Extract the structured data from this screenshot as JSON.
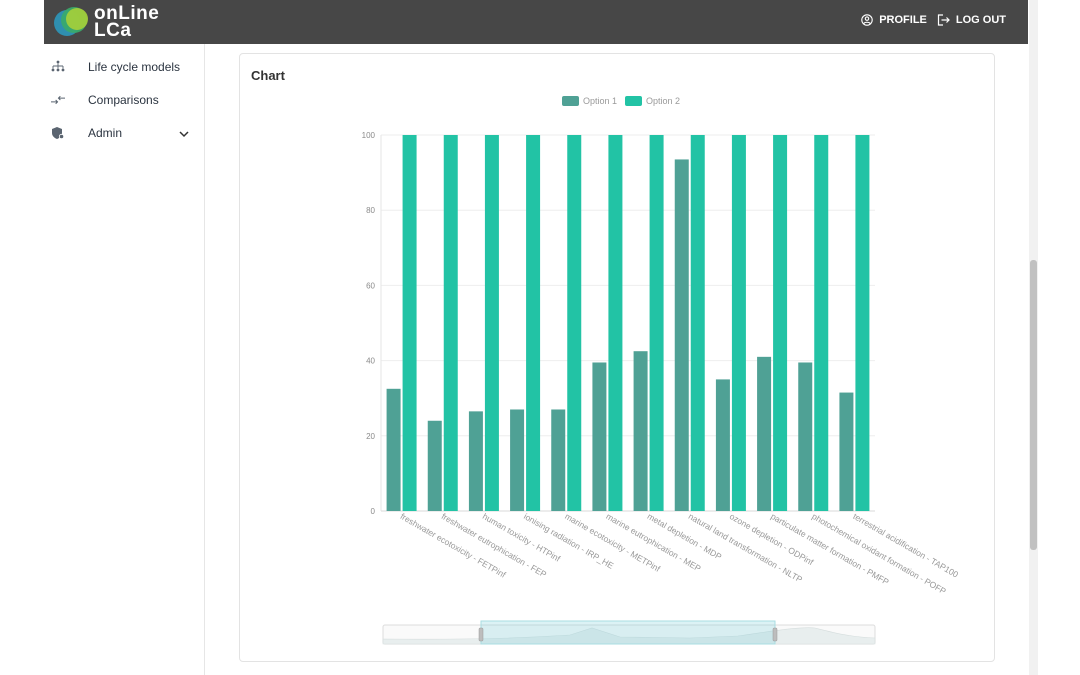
{
  "header": {
    "logo_line1": "onLine",
    "logo_line2": "LCa",
    "profile_label": "PROFILE",
    "logout_label": "LOG OUT"
  },
  "sidebar": {
    "items": [
      {
        "label": "Life cycle models",
        "icon": "hierarchy-icon"
      },
      {
        "label": "Comparisons",
        "icon": "compare-arrows-icon"
      },
      {
        "label": "Admin",
        "icon": "shield-admin-icon"
      }
    ]
  },
  "card": {
    "title": "Chart"
  },
  "colors": {
    "option1": "#4fa195",
    "option2": "#22c3a5",
    "topbar": "#474747"
  },
  "chart_data": {
    "type": "bar",
    "legend_position": "top",
    "ylim": [
      0,
      100
    ],
    "yticks": [
      0,
      20,
      40,
      60,
      80,
      100
    ],
    "categories": [
      "freshwater ecotoxicity - FETPinf",
      "freshwater eutrophication - FEP",
      "human toxicity - HTPinf",
      "ionising radiation - IRP_HE",
      "marine ecotoxicity - METPinf",
      "marine eutrophication - MEP",
      "metal depletion - MDP",
      "natural land transformation - NLTP",
      "ozone depletion - ODPinf",
      "particulate matter formation - PMFP",
      "photochemical oxidant formation - POFP",
      "terrestrial acidification - TAP100"
    ],
    "series": [
      {
        "name": "Option 1",
        "values": [
          32.5,
          24,
          26.5,
          27,
          27,
          39.5,
          42.5,
          93.5,
          35,
          41,
          39.5,
          31.5
        ]
      },
      {
        "name": "Option 2",
        "values": [
          100,
          100,
          100,
          100,
          100,
          100,
          100,
          100,
          100,
          100,
          100,
          100
        ]
      }
    ],
    "grid": true
  }
}
